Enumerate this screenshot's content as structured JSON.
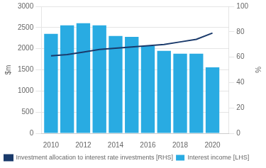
{
  "chart_data": {
    "type": "bar",
    "x": [
      2010,
      2011,
      2012,
      2013,
      2014,
      2015,
      2016,
      2017,
      2018,
      2019,
      2020
    ],
    "series": [
      {
        "name": "Interest income [LHS]",
        "type": "bar",
        "color": "#29ABE2",
        "values": [
          2350,
          2550,
          2600,
          2550,
          2300,
          2280,
          2060,
          1950,
          1880,
          1880,
          1560
        ]
      },
      {
        "name": "Investment allocation to interest rate investments [RHS]",
        "type": "line",
        "color": "#1a3a6b",
        "axis": "y2",
        "values": [
          61,
          62,
          64,
          66,
          67,
          68,
          69,
          70,
          72,
          74,
          79
        ]
      }
    ],
    "xlim": [
      2009.4,
      2021.0
    ],
    "xticks": [
      2010,
      2012,
      2014,
      2016,
      2018,
      2020
    ],
    "ylim": [
      0,
      3000
    ],
    "yticks": [
      0,
      500,
      1000,
      1500,
      2000,
      2500,
      3000
    ],
    "y2lim": [
      0,
      100
    ],
    "y2ticks": [
      0,
      20,
      40,
      60,
      80,
      100
    ],
    "ylabel": "$m",
    "y2label": "%",
    "grid": true,
    "legend": "bottom"
  }
}
